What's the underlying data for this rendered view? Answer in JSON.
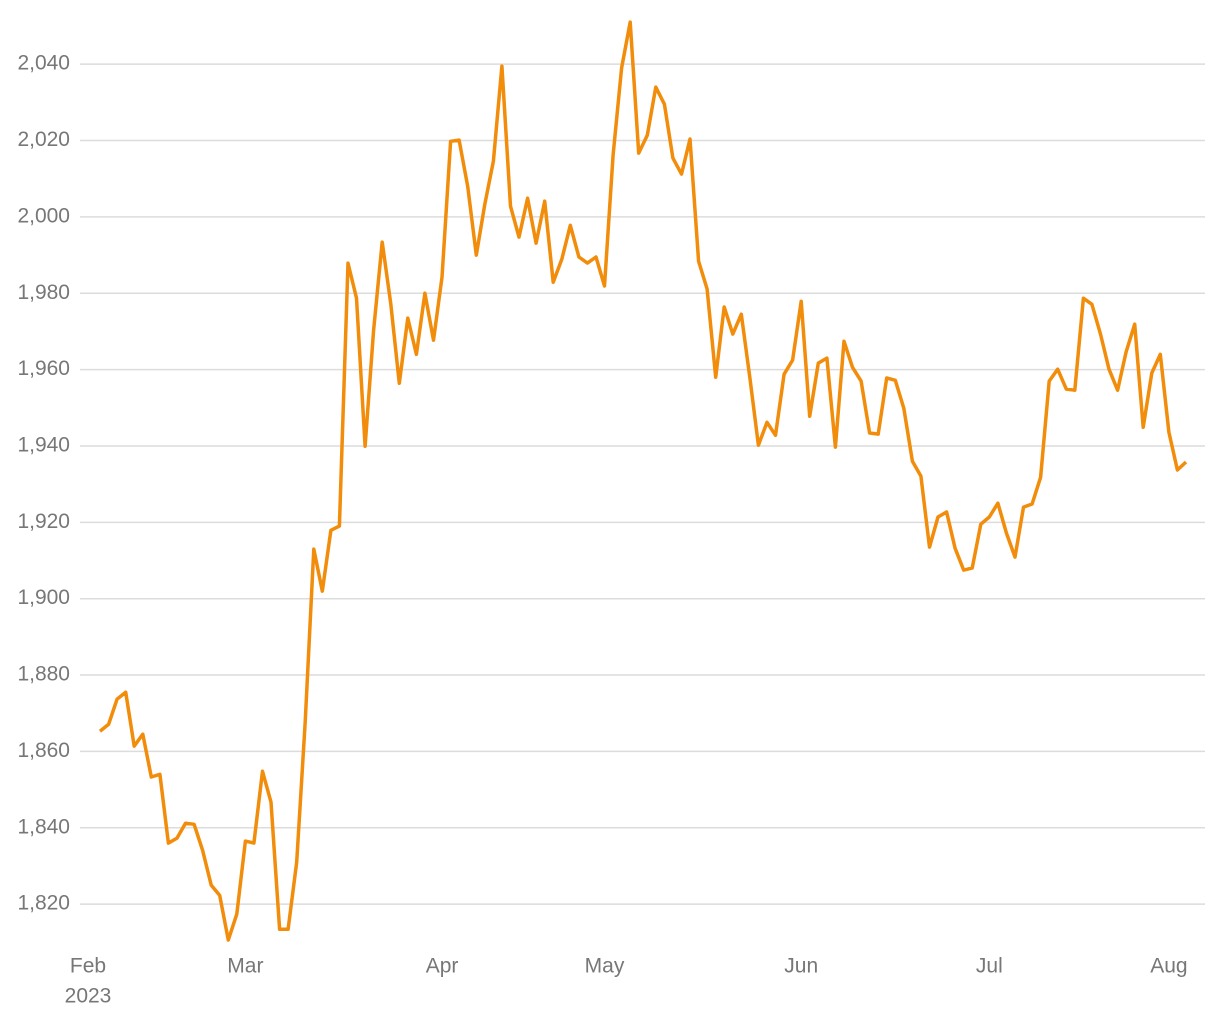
{
  "chart_data": {
    "type": "line",
    "categories": [
      "Feb",
      null,
      null,
      null,
      null,
      null,
      null,
      null,
      null,
      null,
      null,
      null,
      null,
      null,
      null,
      null,
      null,
      "Mar",
      null,
      null,
      null,
      null,
      null,
      null,
      null,
      null,
      null,
      null,
      null,
      null,
      null,
      null,
      null,
      null,
      null,
      null,
      null,
      null,
      null,
      null,
      "Apr",
      null,
      null,
      null,
      null,
      null,
      null,
      null,
      null,
      null,
      null,
      null,
      null,
      null,
      null,
      null,
      null,
      null,
      null,
      "May",
      null,
      null,
      null,
      null,
      null,
      null,
      null,
      null,
      null,
      null,
      null,
      null,
      null,
      null,
      null,
      null,
      null,
      null,
      null,
      null,
      null,
      null,
      "Jun",
      null,
      null,
      null,
      null,
      null,
      null,
      null,
      null,
      null,
      null,
      null,
      null,
      null,
      null,
      null,
      null,
      null,
      null,
      null,
      null,
      null,
      "Jul",
      null,
      null,
      null,
      null,
      null,
      null,
      null,
      null,
      null,
      null,
      null,
      null,
      null,
      null,
      null,
      null,
      null,
      null,
      null,
      null,
      "Aug",
      null,
      null
    ],
    "year": "2023",
    "series": [
      {
        "color": "#f28c0b",
        "values": [
          1865.3,
          1867.1,
          1873.7,
          1875.5,
          1861.4,
          1864.5,
          1853.3,
          1854.0,
          1836.0,
          1837.3,
          1841.2,
          1840.9,
          1834.1,
          1825.0,
          1822.3,
          1810.6,
          1817.4,
          1836.5,
          1836.0,
          1854.8,
          1846.7,
          1813.4,
          1813.4,
          1831.0,
          1867.7,
          1913.0,
          1902.0,
          1917.9,
          1919.0,
          1987.9,
          1978.7,
          1939.9,
          1970.3,
          1993.4,
          1977.4,
          1956.4,
          1973.5,
          1964.0,
          1980.0,
          1967.7,
          1984.2,
          2019.8,
          2020.1,
          2008.0,
          1990.0,
          2003.3,
          2014.6,
          2039.5,
          2002.8,
          1994.7,
          2004.9,
          1993.1,
          2004.1,
          1982.9,
          1988.9,
          1997.8,
          1989.5,
          1987.9,
          1989.5,
          1981.9,
          2016.2,
          2039.0,
          2051.0,
          2016.7,
          2021.4,
          2034.0,
          2029.5,
          2015.4,
          2011.2,
          2020.4,
          1988.4,
          1981.1,
          1958.0,
          1976.4,
          1969.3,
          1974.5,
          1957.8,
          1940.2,
          1946.2,
          1942.8,
          1958.8,
          1962.5,
          1977.9,
          1947.8,
          1961.7,
          1963.0,
          1939.7,
          1967.4,
          1960.6,
          1957.0,
          1943.4,
          1943.1,
          1957.8,
          1957.2,
          1949.9,
          1936.0,
          1932.1,
          1913.5,
          1921.4,
          1922.7,
          1913.2,
          1907.5,
          1908.0,
          1919.5,
          1921.4,
          1925.0,
          1917.2,
          1910.9,
          1924.0,
          1924.8,
          1931.8,
          1957.0,
          1960.1,
          1954.9,
          1954.6,
          1978.7,
          1977.1,
          1969.3,
          1960.1,
          1954.6,
          1964.6,
          1971.9,
          1944.9,
          1959.1,
          1964.0,
          1943.6,
          1933.7,
          1935.8
        ]
      }
    ],
    "ylim": [
      1809.3,
      2056.8
    ],
    "yticks": [
      {
        "value": 1820,
        "label": "1,820"
      },
      {
        "value": 1840,
        "label": "1,840"
      },
      {
        "value": 1860,
        "label": "1,860"
      },
      {
        "value": 1880,
        "label": "1,880"
      },
      {
        "value": 1900,
        "label": "1,900"
      },
      {
        "value": 1920,
        "label": "1,920"
      },
      {
        "value": 1940,
        "label": "1,940"
      },
      {
        "value": 1960,
        "label": "1,960"
      },
      {
        "value": 1980,
        "label": "1,980"
      },
      {
        "value": 2000,
        "label": "2,000"
      },
      {
        "value": 2020,
        "label": "2,020"
      },
      {
        "value": 2040,
        "label": "2,040"
      }
    ],
    "grid": true
  }
}
